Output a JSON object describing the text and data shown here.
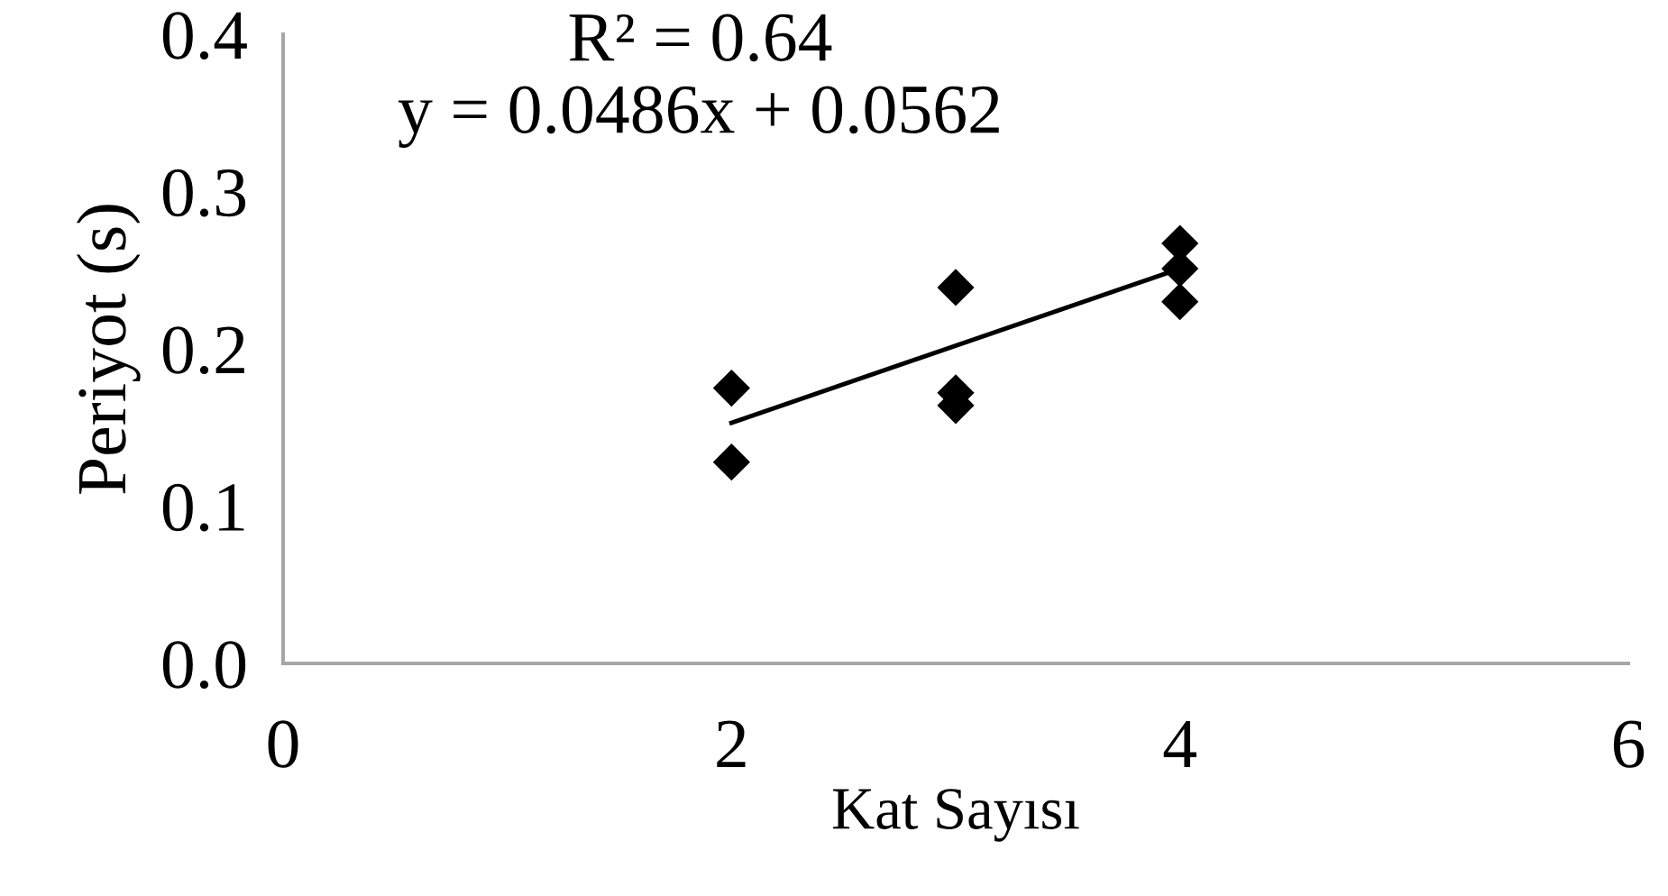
{
  "chart_data": {
    "type": "scatter",
    "xlabel": "Kat Sayısı",
    "ylabel": "Periyot (s)",
    "annotations": [
      "R² = 0.64",
      "y = 0.0486x + 0.0562"
    ],
    "xlim": [
      0,
      6
    ],
    "xticks": [
      0,
      2,
      4,
      6
    ],
    "ylim": [
      0,
      0.4
    ],
    "yticks": [
      {
        "value": 0,
        "label": "0.0"
      },
      0.1,
      0.2,
      0.3,
      0.4
    ],
    "grid": false,
    "legend": false,
    "marker": "diamond",
    "series": [
      {
        "color": "#000000",
        "x": [
          2,
          2,
          3,
          3,
          3,
          4,
          4,
          4
        ],
        "values": [
          0.175,
          0.128,
          0.239,
          0.172,
          0.164,
          0.267,
          0.251,
          0.23
        ]
      },
      {
        "type": "line",
        "color": "#000000",
        "marker": "none",
        "line_style": "solid",
        "x": [
          2,
          4
        ],
        "values": [
          0.153,
          0.251
        ]
      }
    ]
  }
}
